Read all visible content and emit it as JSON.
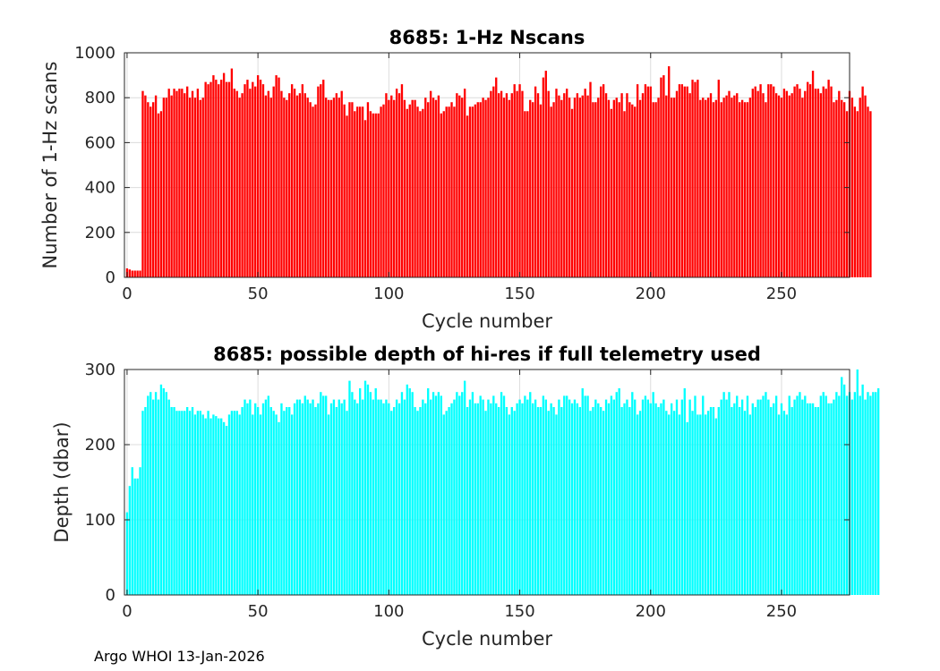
{
  "footer": "Argo WHOI 13-Jan-2026",
  "chart_data": [
    {
      "type": "bar",
      "title": "8685: 1-Hz Nscans",
      "xlabel": "Cycle number",
      "ylabel": "Number of 1-Hz scans",
      "xlim": [
        -1,
        276
      ],
      "ylim": [
        0,
        1000
      ],
      "xticks": [
        0,
        50,
        100,
        150,
        200,
        250
      ],
      "yticks": [
        0,
        200,
        400,
        600,
        800,
        1000
      ],
      "grid": true,
      "color": "#ff0000",
      "x_start": 0,
      "values": [
        40,
        35,
        30,
        30,
        30,
        30,
        830,
        810,
        780,
        760,
        780,
        810,
        730,
        740,
        800,
        800,
        840,
        810,
        840,
        830,
        840,
        840,
        820,
        850,
        800,
        830,
        800,
        840,
        790,
        800,
        870,
        860,
        870,
        900,
        880,
        860,
        880,
        910,
        870,
        870,
        930,
        840,
        830,
        800,
        820,
        860,
        880,
        840,
        870,
        850,
        900,
        880,
        860,
        810,
        830,
        800,
        850,
        900,
        890,
        830,
        800,
        790,
        820,
        860,
        840,
        810,
        820,
        860,
        820,
        800,
        780,
        760,
        770,
        850,
        860,
        880,
        800,
        790,
        790,
        800,
        820,
        800,
        830,
        770,
        720,
        780,
        780,
        740,
        760,
        760,
        760,
        700,
        780,
        740,
        730,
        730,
        730,
        760,
        770,
        820,
        790,
        810,
        790,
        840,
        820,
        860,
        790,
        750,
        770,
        790,
        790,
        760,
        740,
        750,
        800,
        780,
        830,
        800,
        790,
        810,
        730,
        740,
        760,
        760,
        780,
        760,
        820,
        810,
        800,
        840,
        720,
        760,
        760,
        770,
        780,
        780,
        800,
        790,
        800,
        830,
        850,
        890,
        820,
        830,
        800,
        820,
        790,
        820,
        860,
        830,
        860,
        830,
        740,
        740,
        790,
        780,
        850,
        820,
        770,
        890,
        920,
        830,
        760,
        780,
        840,
        810,
        790,
        820,
        840,
        800,
        750,
        800,
        820,
        800,
        810,
        840,
        810,
        870,
        780,
        780,
        800,
        850,
        860,
        820,
        790,
        750,
        790,
        800,
        780,
        820,
        740,
        820,
        780,
        770,
        760,
        860,
        790,
        820,
        860,
        850,
        850,
        780,
        780,
        800,
        890,
        900,
        810,
        940,
        800,
        800,
        830,
        860,
        860,
        850,
        850,
        820,
        880,
        870,
        880,
        790,
        800,
        790,
        800,
        820,
        780,
        790,
        880,
        780,
        800,
        810,
        830,
        800,
        810,
        820,
        780,
        790,
        780,
        780,
        800,
        840,
        850,
        830,
        860,
        820,
        780,
        860,
        860,
        850,
        820,
        810,
        800,
        840,
        830,
        810,
        820,
        850,
        860,
        840,
        800,
        830,
        870,
        860,
        920,
        840,
        840,
        820,
        850,
        840,
        880,
        850,
        780,
        790,
        830,
        790,
        780,
        740,
        830,
        800,
        760,
        740,
        800,
        850,
        810,
        760,
        740
      ]
    },
    {
      "type": "bar",
      "title": "8685: possible depth of hi-res if full telemetry used",
      "xlabel": "Cycle number",
      "ylabel": "Depth (dbar)",
      "xlim": [
        -1,
        276
      ],
      "ylim": [
        0,
        300
      ],
      "xticks": [
        0,
        50,
        100,
        150,
        200,
        250
      ],
      "yticks": [
        0,
        100,
        200,
        300
      ],
      "grid": true,
      "color": "#00ffff",
      "x_start": 0,
      "values": [
        110,
        145,
        170,
        155,
        155,
        170,
        245,
        250,
        265,
        270,
        260,
        270,
        260,
        280,
        275,
        270,
        260,
        250,
        250,
        245,
        245,
        245,
        245,
        250,
        245,
        250,
        240,
        245,
        245,
        240,
        235,
        245,
        235,
        240,
        238,
        235,
        235,
        230,
        225,
        240,
        245,
        245,
        245,
        240,
        250,
        260,
        255,
        260,
        240,
        255,
        250,
        240,
        255,
        260,
        265,
        250,
        245,
        240,
        230,
        255,
        245,
        250,
        250,
        240,
        255,
        260,
        260,
        255,
        265,
        260,
        255,
        260,
        250,
        255,
        270,
        265,
        265,
        240,
        255,
        260,
        250,
        260,
        255,
        260,
        245,
        285,
        270,
        260,
        255,
        275,
        260,
        285,
        280,
        270,
        260,
        275,
        260,
        260,
        255,
        260,
        255,
        245,
        250,
        260,
        255,
        270,
        260,
        280,
        275,
        270,
        250,
        245,
        250,
        260,
        255,
        275,
        260,
        270,
        265,
        270,
        265,
        240,
        245,
        250,
        255,
        260,
        270,
        265,
        270,
        285,
        250,
        260,
        270,
        255,
        255,
        265,
        260,
        245,
        260,
        255,
        265,
        255,
        250,
        270,
        265,
        250,
        240,
        250,
        245,
        255,
        260,
        255,
        265,
        260,
        270,
        255,
        260,
        250,
        250,
        265,
        260,
        245,
        255,
        250,
        240,
        260,
        250,
        265,
        265,
        260,
        255,
        260,
        255,
        250,
        275,
        265,
        265,
        245,
        250,
        260,
        255,
        250,
        245,
        260,
        255,
        265,
        260,
        270,
        275,
        250,
        255,
        260,
        250,
        270,
        260,
        240,
        245,
        260,
        265,
        260,
        255,
        270,
        255,
        250,
        255,
        260,
        245,
        240,
        255,
        245,
        260,
        240,
        260,
        275,
        230,
        260,
        245,
        265,
        240,
        240,
        265,
        240,
        245,
        250,
        250,
        235,
        250,
        260,
        270,
        260,
        270,
        250,
        255,
        265,
        250,
        260,
        245,
        265,
        240,
        255,
        250,
        260,
        260,
        265,
        270,
        260,
        250,
        255,
        265,
        240,
        255,
        245,
        240,
        265,
        250,
        260,
        265,
        270,
        260,
        265,
        255,
        255,
        255,
        250,
        250,
        265,
        270,
        265,
        255,
        255,
        260,
        270,
        265,
        290,
        280,
        265,
        270,
        260,
        270,
        300,
        265,
        280,
        260,
        270,
        265,
        270,
        270,
        275
      ]
    }
  ]
}
